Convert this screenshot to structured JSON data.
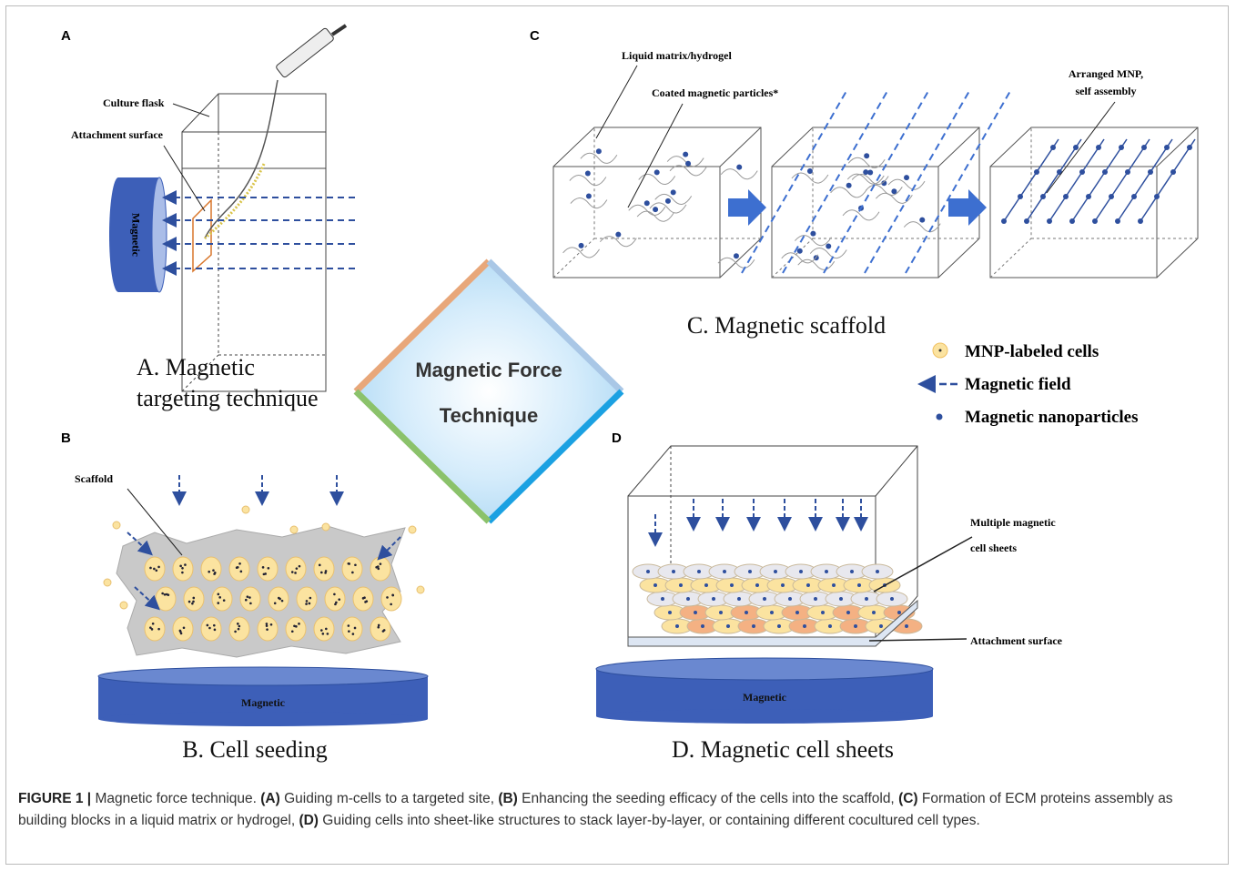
{
  "figure": {
    "panel_a": {
      "letter": "A",
      "flask_label": "Culture flask",
      "surface_label": "Attachment surface",
      "magnet_label": "Magnetic",
      "caption": [
        "A. Magnetic",
        "targeting technique"
      ]
    },
    "center": {
      "lines": [
        "Magnetic Force",
        "Technique"
      ]
    },
    "panel_c": {
      "letter": "C",
      "matrix_label": "Liquid matrix/hydrogel",
      "particles_label": "Coated magnetic particles*",
      "arranged_label": [
        "Arranged MNP,",
        "self assembly"
      ],
      "caption": "C. Magnetic scaffold"
    },
    "legend": [
      "MNP-labeled cells",
      "Magnetic field",
      "Magnetic nanoparticles"
    ],
    "panel_b": {
      "letter": "B",
      "scaffold_label": "Scaffold",
      "magnet_label": "Magnetic",
      "caption": "B. Cell seeding"
    },
    "panel_d": {
      "letter": "D",
      "sheets_label": [
        "Multiple magnetic",
        "cell sheets"
      ],
      "surface_label": "Attachment surface",
      "magnet_label": "Magnetic",
      "caption": "D. Magnetic cell sheets"
    }
  },
  "caption": {
    "label": "FIGURE 1 |",
    "intro": "Magnetic force technique.",
    "items": [
      {
        "tag": "(A)",
        "text": "Guiding m-cells to a targeted site,"
      },
      {
        "tag": "(B)",
        "text": "Enhancing the seeding efficacy of the cells into the scaffold,"
      },
      {
        "tag": "(C)",
        "text": "Formation of ECM proteins assembly as building blocks in a liquid matrix or hydrogel,"
      },
      {
        "tag": "(D)",
        "text": "Guiding cells into sheet-like structures to stack layer-by-layer, or containing different cocultured cell types."
      }
    ]
  }
}
